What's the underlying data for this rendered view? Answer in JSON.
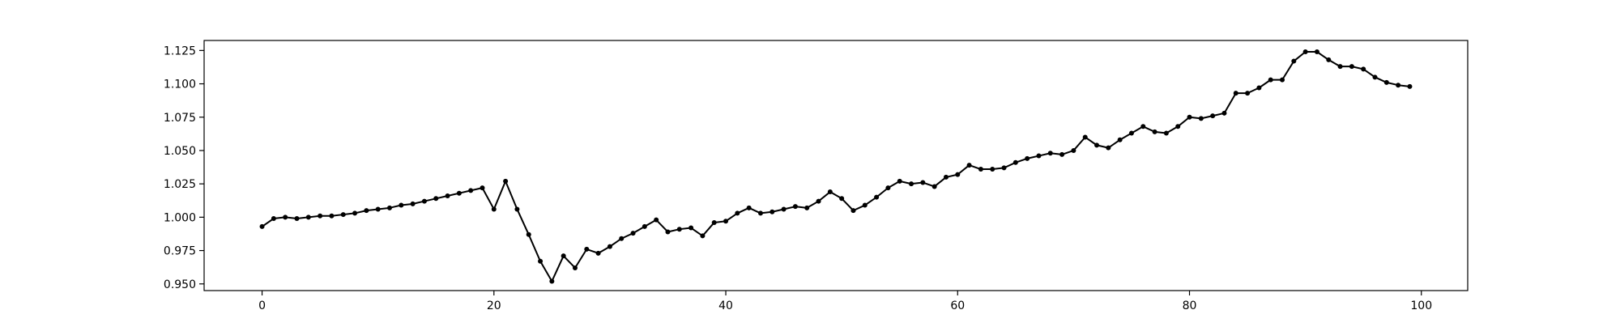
{
  "chart_data": {
    "type": "line",
    "title": "",
    "xlabel": "",
    "ylabel": "",
    "xlim": [
      -5,
      104
    ],
    "ylim": [
      0.945,
      1.1325
    ],
    "x_ticks": [
      0,
      20,
      40,
      60,
      80,
      100
    ],
    "x_tick_labels": [
      "0",
      "20",
      "40",
      "60",
      "80",
      "100"
    ],
    "y_ticks": [
      0.95,
      0.975,
      1.0,
      1.025,
      1.05,
      1.075,
      1.1,
      1.125
    ],
    "y_tick_labels": [
      "0.950",
      "0.975",
      "1.000",
      "1.025",
      "1.050",
      "1.075",
      "1.100",
      "1.125"
    ],
    "grid": false,
    "legend": "none",
    "line_color": "#000000",
    "series": [
      {
        "x": [
          0,
          1,
          2,
          3,
          4,
          5,
          6,
          7,
          8,
          9,
          10,
          11,
          12,
          13,
          14,
          15,
          16,
          17,
          18,
          19,
          20,
          21,
          22,
          23,
          24,
          25,
          26,
          27,
          28,
          29,
          30,
          31,
          32,
          33,
          34,
          35,
          36,
          37,
          38,
          39,
          40,
          41,
          42,
          43,
          44,
          45,
          46,
          47,
          48,
          49,
          50,
          51,
          52,
          53,
          54,
          55,
          56,
          57,
          58,
          59,
          60,
          61,
          62,
          63,
          64,
          65,
          66,
          67,
          68,
          69,
          70,
          71,
          72,
          73,
          74,
          75,
          76,
          77,
          78,
          79,
          80,
          81,
          82,
          83,
          84,
          85,
          86,
          87,
          88,
          89,
          90,
          91,
          92,
          93,
          94,
          95,
          96,
          97,
          98,
          99
        ],
        "values": [
          0.993,
          0.999,
          1.0,
          0.999,
          1.0,
          1.001,
          1.001,
          1.002,
          1.003,
          1.005,
          1.006,
          1.007,
          1.009,
          1.01,
          1.012,
          1.014,
          1.016,
          1.018,
          1.02,
          1.022,
          1.006,
          1.027,
          1.006,
          0.987,
          0.967,
          0.952,
          0.971,
          0.962,
          0.976,
          0.973,
          0.978,
          0.984,
          0.988,
          0.993,
          0.998,
          0.989,
          0.991,
          0.992,
          0.986,
          0.996,
          0.997,
          1.003,
          1.007,
          1.003,
          1.004,
          1.006,
          1.008,
          1.007,
          1.012,
          1.019,
          1.014,
          1.005,
          1.009,
          1.015,
          1.022,
          1.027,
          1.025,
          1.026,
          1.023,
          1.03,
          1.032,
          1.039,
          1.036,
          1.036,
          1.037,
          1.041,
          1.044,
          1.046,
          1.048,
          1.047,
          1.05,
          1.06,
          1.054,
          1.052,
          1.058,
          1.063,
          1.068,
          1.064,
          1.063,
          1.068,
          1.075,
          1.074,
          1.076,
          1.078,
          1.093,
          1.093,
          1.097,
          1.103,
          1.103,
          1.117,
          1.124,
          1.124,
          1.118,
          1.113,
          1.113,
          1.111,
          1.105,
          1.101,
          1.099,
          1.098
        ]
      }
    ]
  }
}
